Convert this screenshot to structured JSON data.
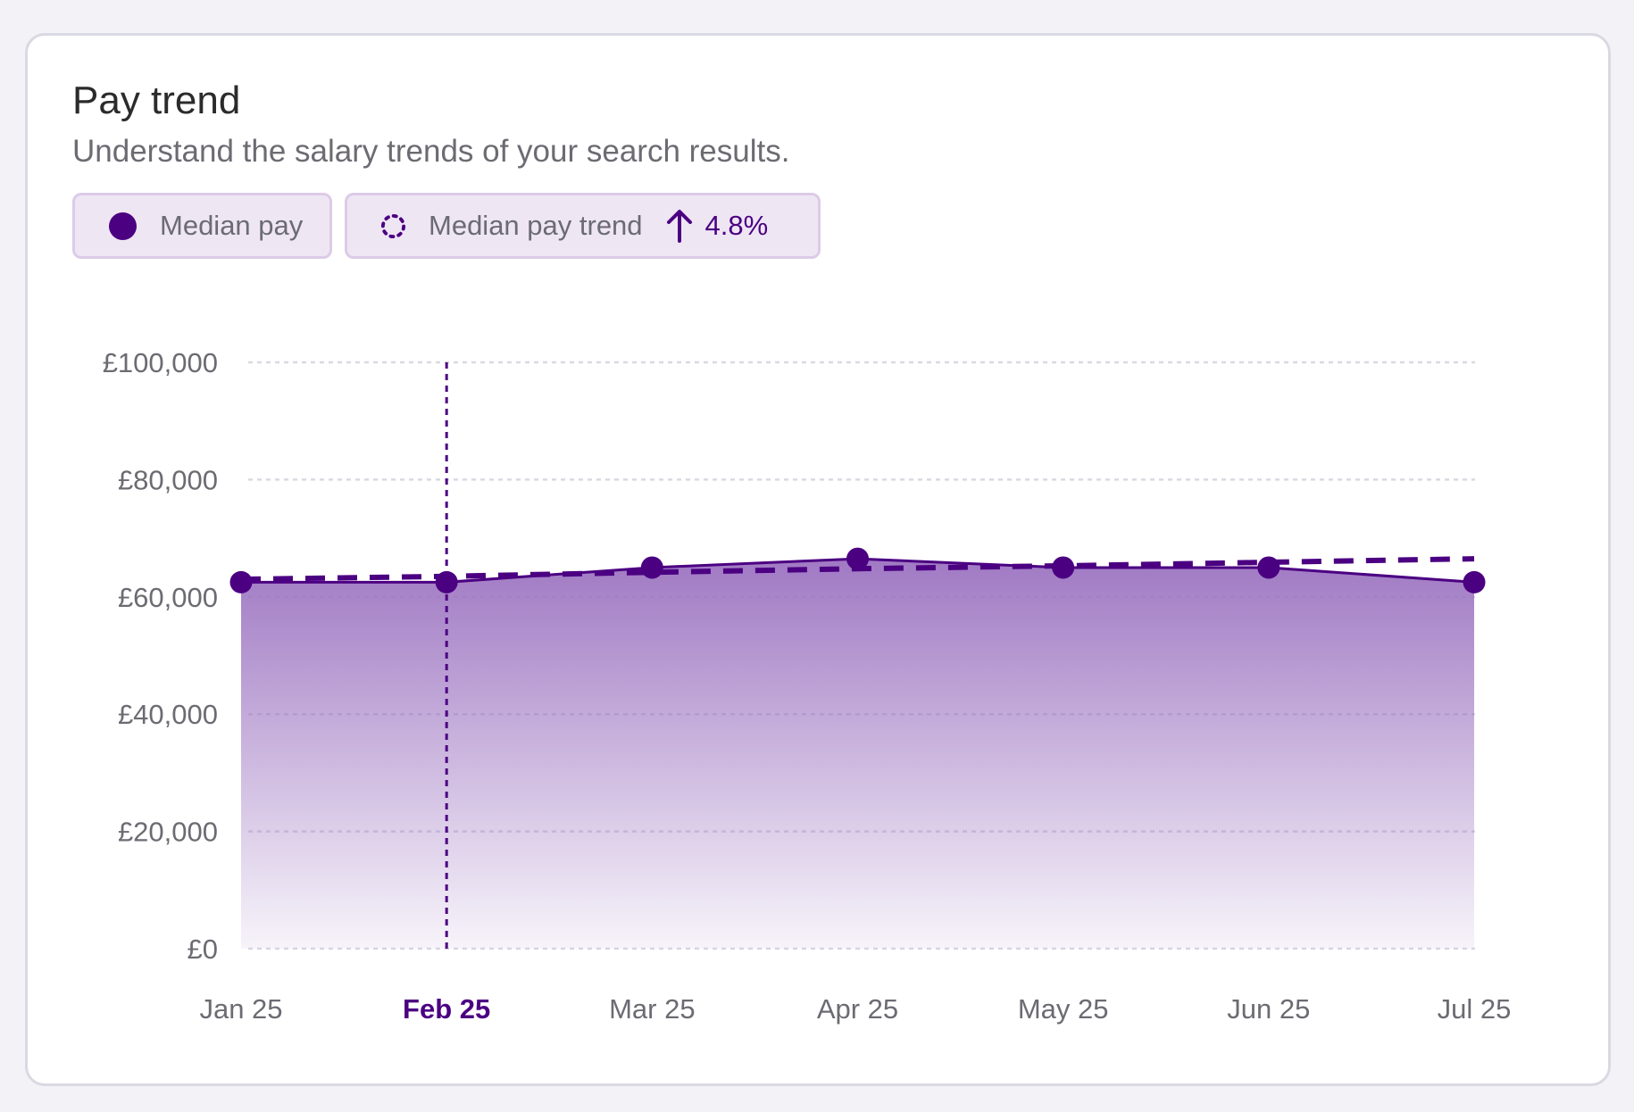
{
  "card": {
    "title": "Pay trend",
    "subtitle": "Understand the salary trends of your search results."
  },
  "legend": {
    "median_label": "Median pay",
    "trend_label": "Median pay trend",
    "trend_change": "4.8%",
    "trend_direction_icon": "arrow-up-icon"
  },
  "colors": {
    "accent": "#4b0082",
    "area_top": "#9b72c0",
    "grid": "#d9d9e3",
    "tick_text": "#6b6b72"
  },
  "chart_data": {
    "type": "area",
    "categories": [
      "Jan 25",
      "Feb 25",
      "Mar 25",
      "Apr 25",
      "May 25",
      "Jun 25",
      "Jul 25"
    ],
    "highlighted_category": "Feb 25",
    "series": [
      {
        "name": "Median pay",
        "values": [
          62500,
          62500,
          65000,
          66500,
          65000,
          65000,
          62500
        ]
      },
      {
        "name": "Median pay trend",
        "values": [
          63000,
          63500,
          64200,
          64800,
          65300,
          65900,
          66500
        ]
      }
    ],
    "ylim": [
      0,
      100000
    ],
    "yticks": [
      0,
      20000,
      40000,
      60000,
      80000,
      100000
    ],
    "ytick_labels": [
      "£0",
      "£20,000",
      "£40,000",
      "£60,000",
      "£80,000",
      "£100,000"
    ],
    "grid": true,
    "legend_position": "top-left"
  }
}
